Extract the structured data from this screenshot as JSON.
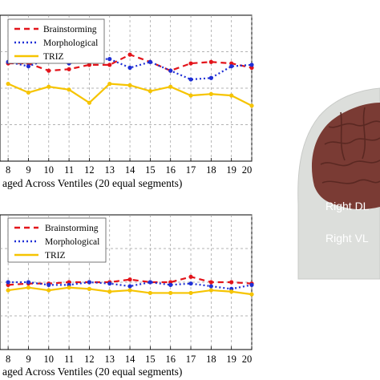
{
  "colors": {
    "brainstorming": "#e3141b",
    "morphological": "#1f2fd6",
    "triz": "#f6c400",
    "grid": "#9a9a9a",
    "head": "#dcdedb",
    "brain": "#7a3b34"
  },
  "chart_data": [
    {
      "type": "line",
      "x": [
        8,
        9,
        10,
        11,
        12,
        13,
        14,
        15,
        16,
        17,
        18,
        19,
        20
      ],
      "xlim": [
        7.6,
        20
      ],
      "ylim": [
        0,
        1
      ],
      "xticklabels": [
        "8",
        "9",
        "10",
        "11",
        "12",
        "13",
        "14",
        "15",
        "16",
        "17",
        "18",
        "19",
        "20"
      ],
      "xlabel": "aged Across Ventiles (20 equal segments)",
      "grid": true,
      "legend": "top-left",
      "series": [
        {
          "name": "Brainstorming",
          "style": "dashed",
          "values": [
            0.67,
            0.67,
            0.62,
            0.63,
            0.66,
            0.66,
            0.73,
            0.68,
            0.62,
            0.67,
            0.68,
            0.67,
            0.64
          ]
        },
        {
          "name": "Morphological",
          "style": "dotted",
          "values": [
            0.68,
            0.65,
            0.7,
            0.67,
            0.7,
            0.7,
            0.64,
            0.68,
            0.62,
            0.56,
            0.57,
            0.65,
            0.66
          ]
        },
        {
          "name": "TRIZ",
          "style": "solid",
          "values": [
            0.53,
            0.47,
            0.51,
            0.49,
            0.4,
            0.53,
            0.52,
            0.48,
            0.51,
            0.45,
            0.46,
            0.45,
            0.38
          ]
        }
      ]
    },
    {
      "type": "line",
      "x": [
        8,
        9,
        10,
        11,
        12,
        13,
        14,
        15,
        16,
        17,
        18,
        19,
        20
      ],
      "xlim": [
        7.6,
        20
      ],
      "ylim": [
        0,
        1
      ],
      "xticklabels": [
        "8",
        "9",
        "10",
        "11",
        "12",
        "13",
        "14",
        "15",
        "16",
        "17",
        "18",
        "19",
        "20"
      ],
      "xlabel": "aged Across Ventiles (20 equal segments)",
      "grid": true,
      "legend": "top-left",
      "series": [
        {
          "name": "Brainstorming",
          "style": "dashed",
          "values": [
            0.48,
            0.49,
            0.49,
            0.5,
            0.5,
            0.5,
            0.52,
            0.5,
            0.5,
            0.54,
            0.5,
            0.5,
            0.49
          ]
        },
        {
          "name": "Morphological",
          "style": "dotted",
          "values": [
            0.5,
            0.5,
            0.48,
            0.48,
            0.5,
            0.49,
            0.47,
            0.5,
            0.48,
            0.49,
            0.47,
            0.45,
            0.48
          ]
        },
        {
          "name": "TRIZ",
          "style": "solid",
          "values": [
            0.44,
            0.46,
            0.44,
            0.46,
            0.45,
            0.43,
            0.44,
            0.42,
            0.42,
            0.42,
            0.44,
            0.43,
            0.41
          ]
        }
      ]
    }
  ],
  "brain": {
    "label_1": "Right DL",
    "label_2": "Right VL"
  }
}
